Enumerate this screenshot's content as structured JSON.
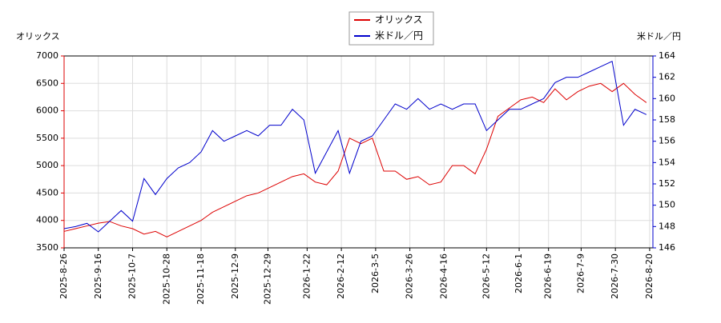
{
  "chart_data": {
    "type": "line",
    "y_label": "オリックス",
    "y2_label": "米ドル／円",
    "x": [
      "2025-8-26",
      "2025-9-2",
      "2025-9-9",
      "2025-9-16",
      "2025-9-23",
      "2025-9-30",
      "2025-10-7",
      "2025-10-14",
      "2025-10-21",
      "2025-10-28",
      "2025-11-4",
      "2025-11-11",
      "2025-11-18",
      "2025-11-25",
      "2025-12-2",
      "2025-12-9",
      "2025-12-16",
      "2025-12-23",
      "2025-12-30",
      "2026-1-6",
      "2026-1-13",
      "2026-1-20",
      "2026-1-27",
      "2026-2-3",
      "2026-2-10",
      "2026-2-17",
      "2026-2-24",
      "2026-3-3",
      "2026-3-10",
      "2026-3-17",
      "2026-3-24",
      "2026-3-31",
      "2026-4-7",
      "2026-4-14",
      "2026-4-21",
      "2026-4-28",
      "2026-5-5",
      "2026-5-12",
      "2026-5-19",
      "2026-5-26",
      "2026-6-2",
      "2026-6-9",
      "2026-6-16",
      "2026-6-23",
      "2026-6-30",
      "2026-7-7",
      "2026-7-14",
      "2026-7-21",
      "2026-7-28",
      "2026-8-4",
      "2026-8-11",
      "2026-8-18"
    ],
    "series": [
      {
        "name": "オリックス",
        "color": "#dd0000",
        "axis": "y",
        "values": [
          3800,
          3850,
          3900,
          3950,
          3980,
          3900,
          3850,
          3750,
          3800,
          3700,
          3800,
          3900,
          4000,
          4150,
          4250,
          4350,
          4450,
          4500,
          4600,
          4700,
          4800,
          4850,
          4700,
          4650,
          4900,
          5500,
          5400,
          5500,
          4900,
          4900,
          4750,
          4800,
          4650,
          4700,
          5000,
          5000,
          4850,
          5300,
          5900,
          6050,
          6200,
          6250,
          6150,
          6400,
          6200,
          6350,
          6450,
          6500,
          6350,
          6500,
          6300,
          6150
        ]
      },
      {
        "name": "米ドル／円",
        "color": "#0000cc",
        "axis": "y2",
        "values": [
          147.8,
          148,
          148.3,
          147.5,
          148.5,
          149.5,
          148.5,
          152.5,
          151,
          152.5,
          153.5,
          154,
          155,
          157,
          156,
          156.5,
          157,
          156.5,
          157.5,
          157.5,
          159,
          158,
          153,
          155,
          157,
          153,
          156,
          156.5,
          158,
          159.5,
          159,
          160,
          159,
          159.5,
          159,
          159.5,
          159.5,
          157,
          158,
          159,
          159,
          159.5,
          160,
          161.5,
          162,
          162,
          162.5,
          163,
          163.5,
          157.5,
          159,
          158.5
        ]
      }
    ],
    "xlim": [
      "2025-8-26",
      "2026-8-22"
    ],
    "xticks": [
      "2025-8-26",
      "2025-9-16",
      "2025-10-7",
      "2025-10-28",
      "2025-11-18",
      "2025-12-9",
      "2025-12-29",
      "2026-1-22",
      "2026-2-12",
      "2026-3-5",
      "2026-3-26",
      "2026-4-16",
      "2026-5-12",
      "2026-6-1",
      "2026-6-19",
      "2026-7-9",
      "2026-7-30",
      "2026-8-20"
    ],
    "ylim": [
      3500,
      7000
    ],
    "yticks": [
      3500,
      4000,
      4500,
      5000,
      5500,
      6000,
      6500,
      7000
    ],
    "y2lim": [
      146,
      164
    ],
    "y2ticks": [
      146,
      148,
      150,
      152,
      154,
      156,
      158,
      160,
      162,
      164
    ],
    "grid": true
  }
}
